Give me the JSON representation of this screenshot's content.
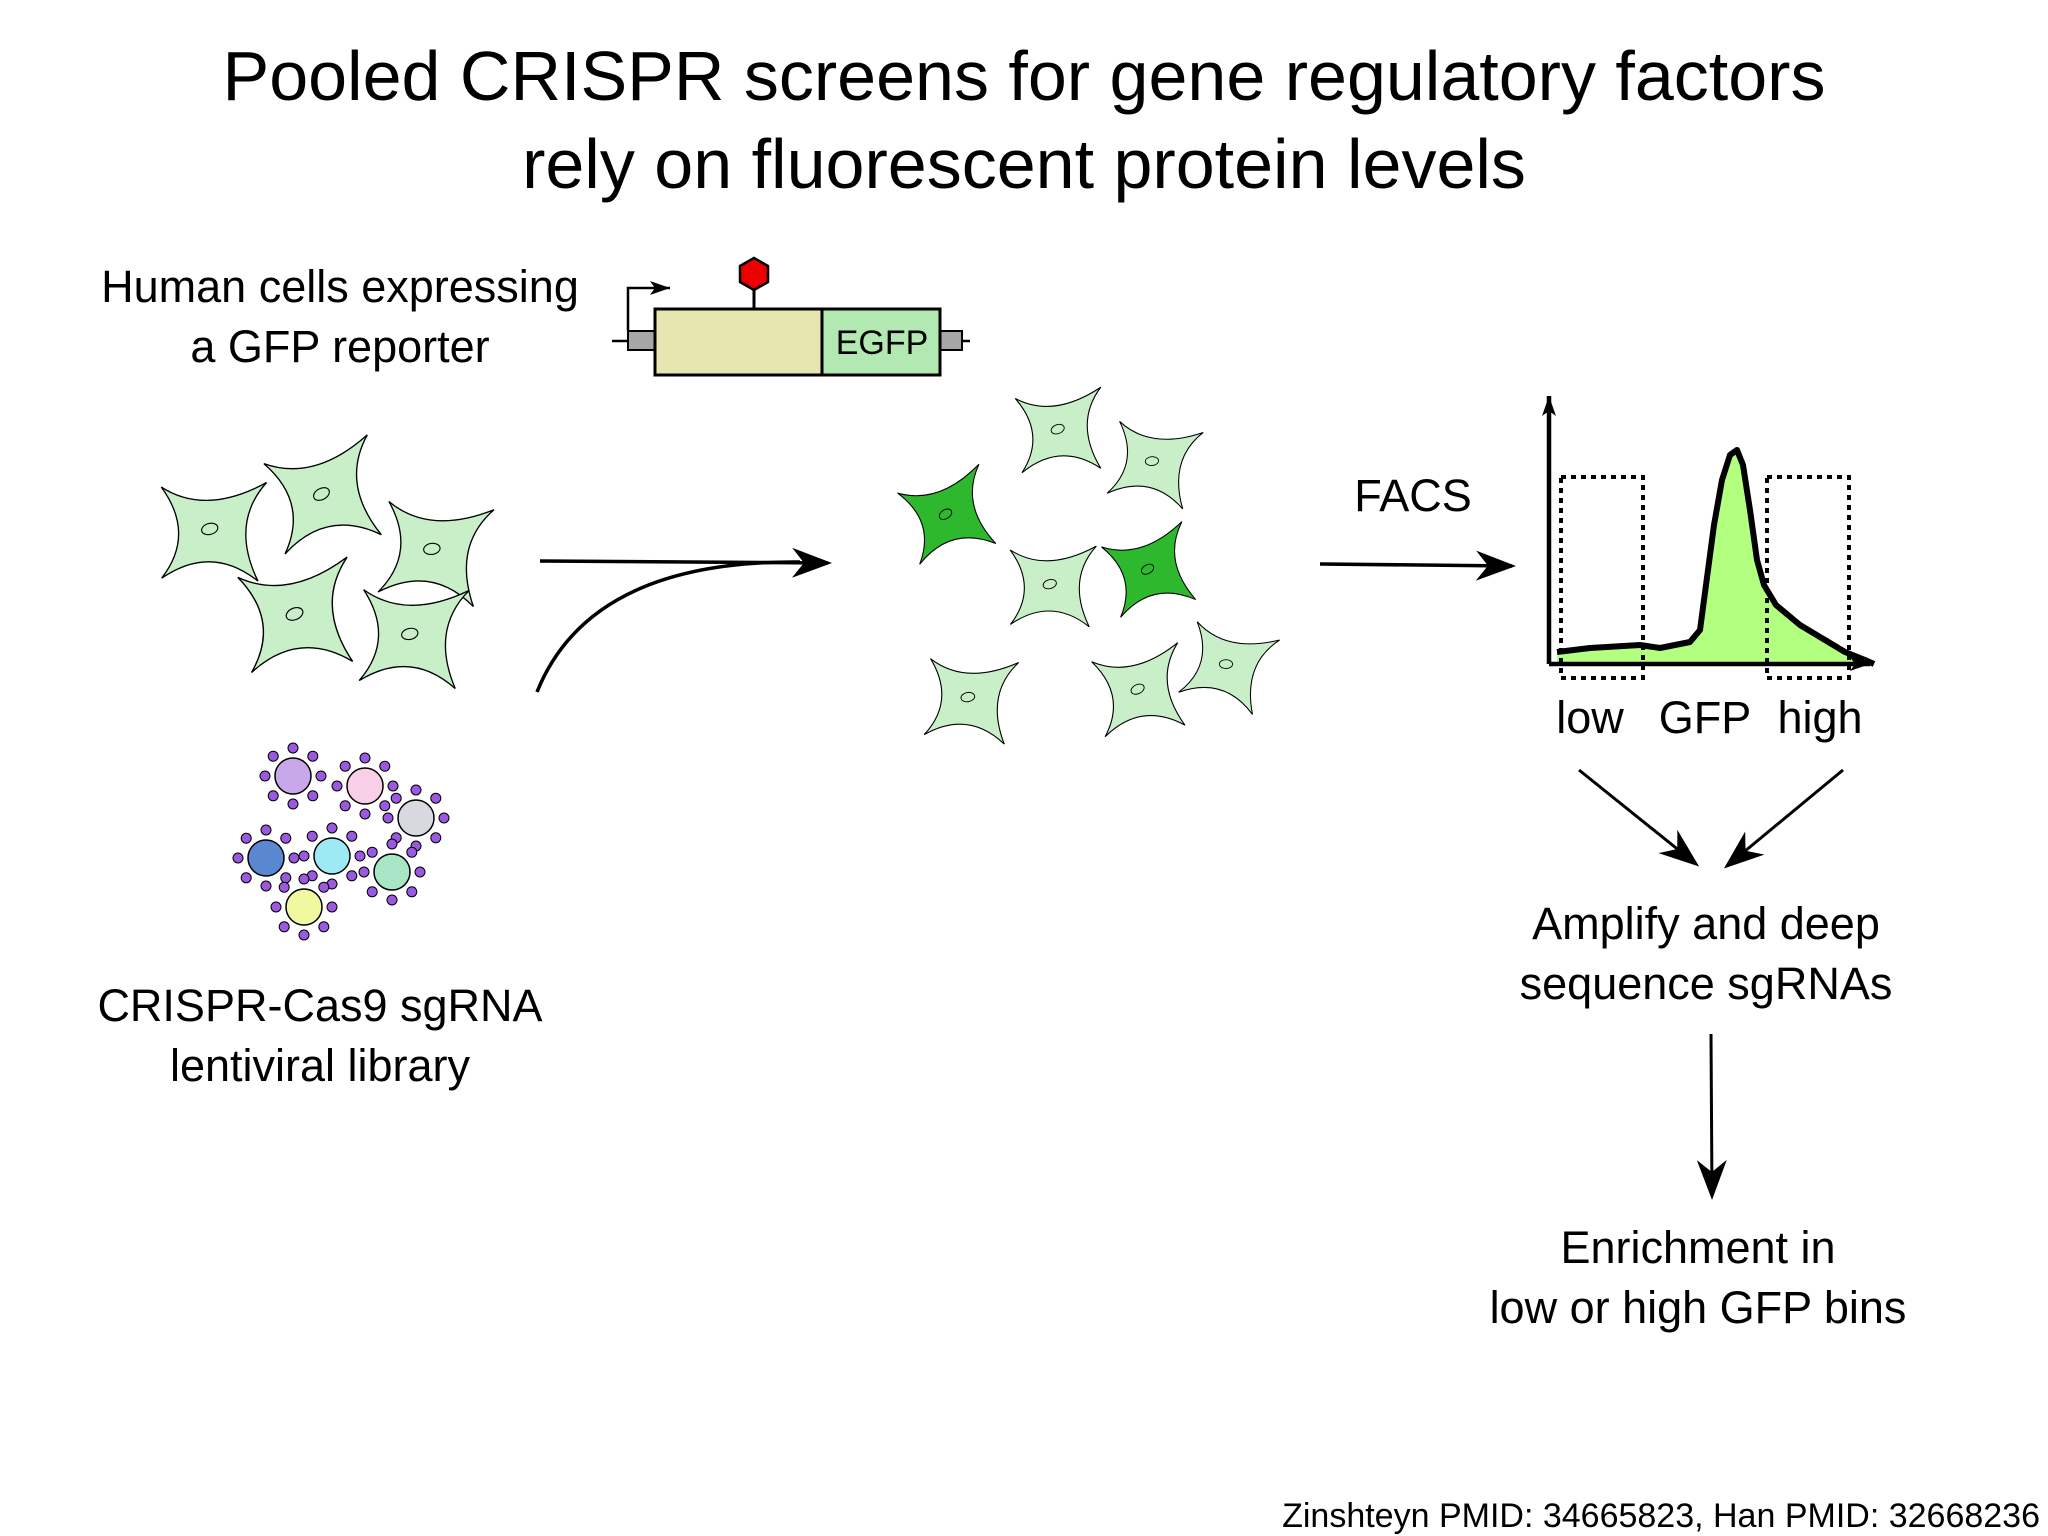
{
  "title": {
    "line1": "Pooled CRISPR screens for gene regulatory factors",
    "line2": "rely on fluorescent protein levels"
  },
  "cells_label": {
    "line1": "Human cells expressing",
    "line2": "a GFP reporter"
  },
  "reporter": {
    "cds_label": "EGFP"
  },
  "library_label": {
    "line1": "CRISPR-Cas9 sgRNA",
    "line2": "lentiviral library"
  },
  "facs_label": "FACS",
  "histogram": {
    "bin_low": "low",
    "axis_label": "GFP",
    "bin_high": "high"
  },
  "sequencing_label": {
    "line1": "Amplify and deep",
    "line2": "sequence sgRNAs"
  },
  "enrichment_label": {
    "line1": "Enrichment in",
    "line2": "low or high GFP bins"
  },
  "citation": "Zinshteyn PMID: 34665823, Han PMID: 32668236",
  "colors": {
    "light_cell": "#c8efc8",
    "dark_cell": "#2db82d",
    "reporter_utr": "#e8e6b0",
    "reporter_egfp": "#b2e8b2",
    "stop_hexagon": "#ee0000",
    "histogram_fill": "#b3ff80",
    "virus_spike": "#9b59e0",
    "virus_cores": [
      "#c8a8e8",
      "#f8cfe6",
      "#d8d8e0",
      "#5a88d0",
      "#9eeaf4",
      "#a8e6c8",
      "#f0f8a0"
    ]
  }
}
